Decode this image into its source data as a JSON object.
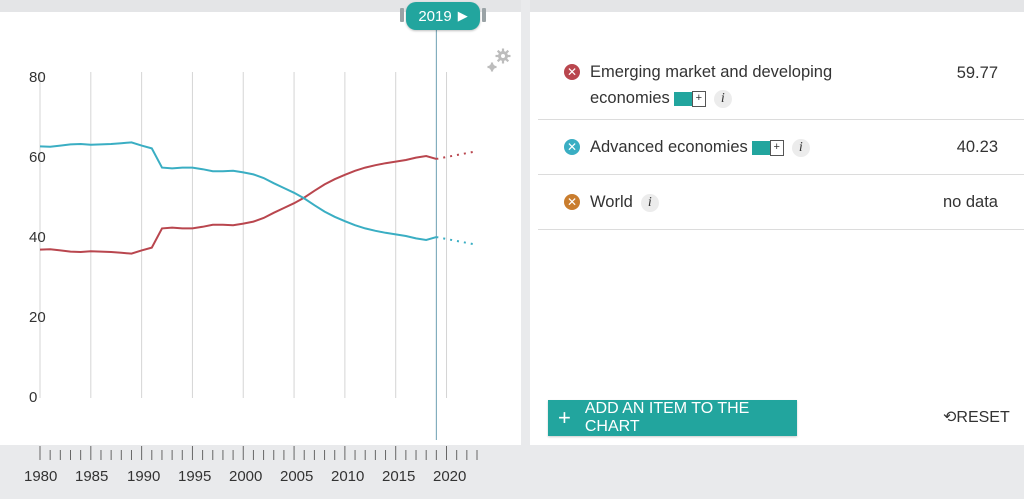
{
  "timeline": {
    "year": "2019"
  },
  "legend": [
    {
      "label_line1": "Emerging market and developing",
      "label_line2": "economies",
      "value": "59.77",
      "color": "#b9464e",
      "has_swatch": true
    },
    {
      "label_line1": "Advanced economies",
      "label_line2": "",
      "value": "40.23",
      "color": "#3aaec3",
      "has_swatch": true
    },
    {
      "label_line1": "World",
      "label_line2": "",
      "value": "no data",
      "color": "#c97d2e",
      "has_swatch": false
    }
  ],
  "buttons": {
    "add_item": "ADD AN ITEM TO THE CHART",
    "reset": "RESET",
    "plus": "+",
    "info": "i"
  },
  "icons": {
    "remove": "x-circle-icon",
    "settings": "gear-icon",
    "reset": "reset-icon",
    "play": "play-icon"
  },
  "chart_data": {
    "type": "line",
    "ylim": [
      0,
      80
    ],
    "y_ticks": [
      "0",
      "20",
      "40",
      "60",
      "80"
    ],
    "x_ticks": [
      "1980",
      "1985",
      "1990",
      "1995",
      "2000",
      "2005",
      "2010",
      "2015",
      "2020"
    ],
    "xlim": [
      1980,
      2023
    ],
    "grid": "vertical",
    "series": [
      {
        "name": "Emerging market and developing economies",
        "color": "#b9464e",
        "x": [
          1980,
          1981,
          1982,
          1983,
          1984,
          1985,
          1986,
          1987,
          1988,
          1989,
          1990,
          1991,
          1992,
          1993,
          1994,
          1995,
          1996,
          1997,
          1998,
          1999,
          2000,
          2001,
          2002,
          2003,
          2004,
          2005,
          2006,
          2007,
          2008,
          2009,
          2010,
          2011,
          2012,
          2013,
          2014,
          2015,
          2016,
          2017,
          2018,
          2019
        ],
        "values": [
          37.1,
          37.2,
          36.9,
          36.6,
          36.5,
          36.7,
          36.6,
          36.5,
          36.3,
          36.1,
          36.9,
          37.6,
          42.4,
          42.6,
          42.4,
          42.4,
          42.8,
          43.3,
          43.3,
          43.2,
          43.6,
          44.1,
          45.0,
          46.3,
          47.5,
          48.7,
          50.1,
          51.8,
          53.4,
          54.7,
          55.8,
          56.8,
          57.6,
          58.2,
          58.7,
          59.1,
          59.5,
          60.1,
          60.5,
          59.77
        ]
      },
      {
        "name": "Advanced economies",
        "color": "#3aaec3",
        "x": [
          1980,
          1981,
          1982,
          1983,
          1984,
          1985,
          1986,
          1987,
          1988,
          1989,
          1990,
          1991,
          1992,
          1993,
          1994,
          1995,
          1996,
          1997,
          1998,
          1999,
          2000,
          2001,
          2002,
          2003,
          2004,
          2005,
          2006,
          2007,
          2008,
          2009,
          2010,
          2011,
          2012,
          2013,
          2014,
          2015,
          2016,
          2017,
          2018,
          2019
        ],
        "values": [
          62.9,
          62.8,
          63.1,
          63.4,
          63.5,
          63.3,
          63.4,
          63.5,
          63.7,
          63.9,
          63.1,
          62.4,
          57.6,
          57.4,
          57.6,
          57.6,
          57.2,
          56.7,
          56.7,
          56.8,
          56.4,
          55.9,
          55.0,
          53.7,
          52.5,
          51.3,
          49.9,
          48.2,
          46.6,
          45.3,
          44.2,
          43.2,
          42.4,
          41.8,
          41.3,
          40.9,
          40.5,
          39.9,
          39.5,
          40.23
        ]
      }
    ],
    "projection": [
      {
        "series": "Emerging market and developing economies",
        "x": [
          2019,
          2023
        ],
        "values": [
          59.77,
          61.7
        ]
      },
      {
        "series": "Advanced economies",
        "x": [
          2019,
          2023
        ],
        "values": [
          40.23,
          38.3
        ]
      }
    ]
  }
}
